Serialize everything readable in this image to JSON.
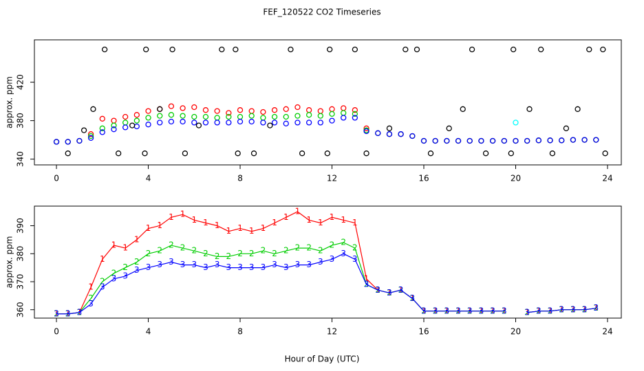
{
  "chart_data": [
    {
      "type": "scatter",
      "title": "FEF_120522  CO2 Timeseries",
      "ylabel": "approx. ppm",
      "xlim": [
        -0.96,
        24.6
      ],
      "xticks": [
        0,
        4,
        8,
        12,
        16,
        20,
        24
      ],
      "ylim": [
        334,
        464
      ],
      "yticks": [
        340,
        380,
        420
      ],
      "x": [
        0,
        0.5,
        1,
        1.5,
        2,
        2.5,
        3,
        3.5,
        4,
        4.5,
        5,
        5.5,
        6,
        6.5,
        7,
        7.5,
        8,
        8.5,
        9,
        9.5,
        10,
        10.5,
        11,
        11.5,
        12,
        12.5,
        13,
        13.5,
        14,
        14.5,
        15,
        15.5,
        16,
        16.5,
        17,
        17.5,
        18,
        18.5,
        19,
        19.5,
        20,
        20.5,
        21,
        21.5,
        22,
        22.5,
        23,
        23.5
      ],
      "series": [
        {
          "color": "#ff0000",
          "values": [
            358,
            358,
            359,
            366,
            382,
            380,
            384,
            386,
            390,
            392,
            395,
            393,
            394,
            391,
            390,
            388,
            391,
            390,
            389,
            391,
            392,
            394,
            391,
            390,
            392,
            393,
            391,
            372,
            367,
            366,
            366,
            364,
            359,
            359,
            359,
            359,
            359,
            359,
            359,
            359,
            359,
            359,
            359.5,
            359.5,
            359.5,
            360,
            360,
            360
          ]
        },
        {
          "color": "#00cd00",
          "values": [
            358,
            358,
            359,
            364,
            372,
            375,
            378,
            380,
            383,
            385,
            386,
            385,
            384,
            384,
            383,
            384,
            384,
            385,
            383,
            384,
            384,
            385,
            386,
            385,
            387,
            388,
            387,
            370,
            367,
            366,
            366,
            364,
            359,
            359,
            359,
            359,
            359,
            359,
            359,
            359,
            359,
            359,
            359.5,
            359.5,
            359.5,
            360,
            360,
            360
          ]
        },
        {
          "color": "#0000ff",
          "values": [
            358,
            358,
            359,
            362,
            368,
            371,
            373,
            374,
            376,
            378,
            379,
            379,
            378,
            378,
            378,
            378,
            379,
            379,
            378,
            378,
            377,
            378,
            378,
            378,
            380,
            383,
            383,
            369,
            367,
            366,
            366,
            364,
            359,
            359,
            359,
            359,
            359,
            359,
            359,
            359,
            359,
            359,
            359.5,
            359.5,
            359.5,
            360,
            360,
            360
          ]
        },
        {
          "color": "#00ffff",
          "x": [
            20
          ],
          "values": [
            378
          ]
        },
        {
          "color": "#000000",
          "x": [
            0.5,
            1.2,
            1.6,
            2.1,
            2.7,
            3.3,
            3.85,
            3.9,
            4.5,
            5.05,
            5.6,
            6.2,
            7.2,
            7.8,
            7.9,
            8.6,
            9.3,
            10.2,
            10.7,
            11.8,
            11.9,
            13.0,
            13.5,
            14.5,
            15.2,
            15.7,
            16.3,
            17.1,
            17.7,
            18.1,
            18.7,
            19.8,
            19.9,
            20.6,
            21.1,
            21.6,
            22.2,
            22.7,
            23.2,
            23.8,
            23.9
          ],
          "values": [
            346,
            370,
            392,
            454,
            346,
            375,
            346,
            454,
            392,
            454,
            346,
            375,
            454,
            454,
            346,
            346,
            375,
            454,
            346,
            346,
            454,
            454,
            346,
            372,
            454,
            454,
            346,
            372,
            392,
            454,
            346,
            346,
            454,
            392,
            454,
            346,
            372,
            392,
            454,
            454,
            346
          ]
        }
      ]
    },
    {
      "type": "line",
      "ylabel": "approx. ppm",
      "xlabel": "Hour of Day (UTC)",
      "xlim": [
        -0.96,
        24.6
      ],
      "xticks": [
        0,
        4,
        8,
        12,
        16,
        20,
        24
      ],
      "ylim": [
        357,
        397
      ],
      "yticks": [
        360,
        370,
        380,
        390
      ],
      "x": [
        0,
        0.5,
        1,
        1.5,
        2,
        2.5,
        3,
        3.5,
        4,
        4.5,
        5,
        5.5,
        6,
        6.5,
        7,
        7.5,
        8,
        8.5,
        9,
        9.5,
        10,
        10.5,
        11,
        11.5,
        12,
        12.5,
        13,
        13.5,
        14,
        14.5,
        15,
        15.5,
        16,
        16.5,
        17,
        17.5,
        18,
        18.5,
        19,
        19.5,
        20,
        20.5,
        21,
        21.5,
        22,
        22.5,
        23,
        23.5
      ],
      "series": [
        {
          "color": "#ff0000",
          "marker": "1",
          "values": [
            358.5,
            358.5,
            359,
            368,
            378,
            383,
            382,
            385,
            389,
            390,
            393,
            394,
            392,
            391,
            390,
            388,
            389,
            388,
            389,
            391,
            393,
            395,
            392,
            391,
            393,
            392,
            391,
            371,
            367,
            366,
            367,
            364,
            359.5,
            359.5,
            359.5,
            359.5,
            359.5,
            359.5,
            359.5,
            359.5,
            null,
            359,
            359.5,
            359.5,
            360,
            360,
            360,
            360.5
          ]
        },
        {
          "color": "#00cd00",
          "marker": "2",
          "values": [
            358.5,
            358.5,
            359,
            364,
            370,
            373,
            375,
            377,
            380,
            381,
            383,
            382,
            381,
            380,
            379,
            379,
            380,
            380,
            381,
            380,
            381,
            382,
            382,
            381,
            383,
            384,
            382,
            369,
            367,
            366,
            367,
            364,
            359.5,
            359.5,
            359.5,
            359.5,
            359.5,
            359.5,
            359.5,
            359.5,
            null,
            359,
            359.5,
            359.5,
            360,
            360,
            360,
            360.5
          ]
        },
        {
          "color": "#0000ff",
          "marker": "3",
          "values": [
            358.5,
            358.5,
            359,
            362,
            368,
            371,
            372,
            374,
            375,
            376,
            377,
            376,
            376,
            375,
            376,
            375,
            375,
            375,
            375,
            376,
            375,
            376,
            376,
            377,
            378,
            380,
            378,
            369,
            367,
            366,
            367,
            364,
            359.5,
            359.5,
            359.5,
            359.5,
            359.5,
            359.5,
            359.5,
            359.5,
            null,
            359,
            359.5,
            359.5,
            360,
            360,
            360,
            360.5
          ]
        }
      ]
    }
  ]
}
